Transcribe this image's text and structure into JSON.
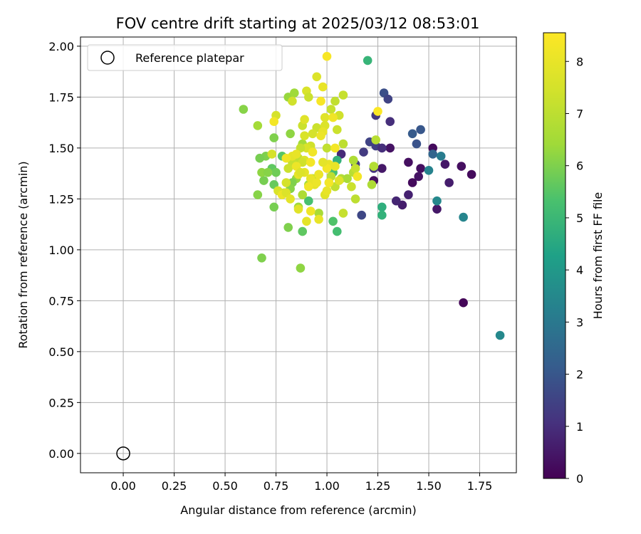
{
  "chart_data": {
    "type": "scatter",
    "title": "FOV centre drift starting at 2025/03/12 08:53:01",
    "xlabel": "Angular distance from reference (arcmin)",
    "ylabel": "Rotation from reference (arcmin)",
    "xlim": [
      -0.21,
      1.93
    ],
    "ylim": [
      -0.095,
      2.045
    ],
    "xticks": [
      "0.00",
      "0.25",
      "0.50",
      "0.75",
      "1.00",
      "1.25",
      "1.50",
      "1.75"
    ],
    "yticks": [
      "0.00",
      "0.25",
      "0.50",
      "0.75",
      "1.00",
      "1.25",
      "1.50",
      "1.75",
      "2.00"
    ],
    "grid": true,
    "legend": {
      "position": "upper-left",
      "label": "Reference platepar"
    },
    "reference_point": {
      "x": 0.0,
      "y": 0.0
    },
    "colorbar": {
      "label": "Hours from first FF file",
      "range": [
        0,
        8.55
      ],
      "ticks": [
        "0",
        "1",
        "2",
        "3",
        "4",
        "5",
        "6",
        "7",
        "8"
      ],
      "colormap": "viridis"
    },
    "points": [
      [
        1.67,
        0.74,
        0.1
      ],
      [
        1.52,
        1.5,
        0.2
      ],
      [
        1.4,
        1.43,
        0.3
      ],
      [
        1.42,
        1.33,
        0.2
      ],
      [
        1.46,
        1.4,
        0.3
      ],
      [
        1.45,
        1.36,
        0.4
      ],
      [
        1.71,
        1.37,
        0.2
      ],
      [
        1.66,
        1.41,
        0.3
      ],
      [
        1.58,
        1.42,
        0.5
      ],
      [
        1.6,
        1.33,
        0.6
      ],
      [
        1.54,
        1.2,
        0.5
      ],
      [
        1.4,
        1.27,
        0.7
      ],
      [
        1.37,
        1.22,
        0.6
      ],
      [
        1.34,
        1.24,
        0.8
      ],
      [
        1.31,
        1.5,
        0.4
      ],
      [
        1.23,
        1.34,
        0.3
      ],
      [
        1.27,
        1.4,
        0.5
      ],
      [
        1.31,
        1.63,
        1.0
      ],
      [
        1.28,
        1.77,
        1.8
      ],
      [
        1.3,
        1.74,
        1.5
      ],
      [
        1.24,
        1.66,
        1.2
      ],
      [
        1.24,
        1.51,
        1.4
      ],
      [
        1.21,
        1.53,
        1.5
      ],
      [
        1.27,
        1.5,
        1.0
      ],
      [
        1.23,
        1.4,
        1.1
      ],
      [
        1.18,
        1.48,
        1.3
      ],
      [
        1.17,
        1.17,
        1.6
      ],
      [
        1.14,
        1.42,
        1.3
      ],
      [
        1.07,
        1.47,
        0.9
      ],
      [
        1.42,
        1.57,
        2.1
      ],
      [
        1.46,
        1.59,
        2.0
      ],
      [
        1.44,
        1.52,
        1.9
      ],
      [
        1.52,
        1.47,
        2.4
      ],
      [
        1.56,
        1.46,
        3.1
      ],
      [
        1.5,
        1.39,
        3.3
      ],
      [
        1.54,
        1.24,
        3.5
      ],
      [
        1.67,
        1.16,
        3.4
      ],
      [
        1.85,
        0.58,
        3.5
      ],
      [
        1.27,
        1.21,
        4.7
      ],
      [
        1.27,
        1.17,
        4.8
      ],
      [
        1.2,
        1.93,
        4.9
      ],
      [
        1.05,
        1.44,
        4.8
      ],
      [
        1.03,
        1.38,
        5.3
      ],
      [
        1.05,
        1.09,
        5.2
      ],
      [
        1.03,
        1.14,
        5.4
      ],
      [
        0.91,
        1.24,
        5.3
      ],
      [
        0.88,
        1.09,
        5.6
      ],
      [
        0.84,
        1.45,
        5.3
      ],
      [
        0.78,
        1.46,
        5.5
      ],
      [
        0.73,
        1.4,
        5.6
      ],
      [
        0.75,
        1.38,
        5.8
      ],
      [
        0.74,
        1.32,
        5.7
      ],
      [
        0.74,
        1.21,
        5.9
      ],
      [
        0.81,
        1.11,
        6.0
      ],
      [
        0.87,
        0.91,
        6.2
      ],
      [
        0.68,
        0.96,
        6.0
      ],
      [
        0.66,
        1.27,
        6.1
      ],
      [
        0.69,
        1.34,
        5.9
      ],
      [
        0.68,
        1.38,
        6.2
      ],
      [
        0.71,
        1.38,
        6.1
      ],
      [
        0.7,
        1.46,
        6.0
      ],
      [
        0.67,
        1.45,
        5.9
      ],
      [
        0.59,
        1.69,
        6.1
      ],
      [
        0.66,
        1.61,
        6.5
      ],
      [
        0.74,
        1.55,
        6.0
      ],
      [
        0.82,
        1.57,
        6.2
      ],
      [
        0.81,
        1.75,
        6.3
      ],
      [
        0.84,
        1.77,
        6.4
      ],
      [
        0.88,
        1.52,
        6.5
      ],
      [
        0.85,
        1.35,
        6.3
      ],
      [
        0.83,
        1.33,
        6.0
      ],
      [
        0.82,
        1.3,
        6.1
      ],
      [
        0.86,
        1.21,
        6.4
      ],
      [
        0.88,
        1.27,
        6.7
      ],
      [
        0.91,
        1.32,
        6.5
      ],
      [
        0.93,
        1.35,
        6.8
      ],
      [
        0.96,
        1.18,
        6.6
      ],
      [
        0.96,
        1.37,
        6.9
      ],
      [
        1.01,
        1.33,
        6.8
      ],
      [
        1.02,
        1.36,
        7.0
      ],
      [
        1.04,
        1.31,
        7.1
      ],
      [
        1.07,
        1.35,
        6.8
      ],
      [
        1.1,
        1.35,
        6.6
      ],
      [
        1.12,
        1.31,
        7.3
      ],
      [
        1.14,
        1.25,
        7.0
      ],
      [
        1.13,
        1.38,
        6.9
      ],
      [
        1.13,
        1.44,
        6.7
      ],
      [
        1.22,
        1.32,
        6.7
      ],
      [
        1.23,
        1.41,
        6.8
      ],
      [
        1.24,
        1.54,
        6.9
      ],
      [
        1.14,
        1.4,
        7.2
      ],
      [
        1.08,
        1.18,
        7.2
      ],
      [
        1.08,
        1.52,
        7.0
      ],
      [
        1.08,
        1.76,
        7.2
      ],
      [
        1.06,
        1.66,
        7.4
      ],
      [
        1.05,
        1.59,
        7.3
      ],
      [
        1.04,
        1.73,
        7.1
      ],
      [
        1.02,
        1.69,
        7.2
      ],
      [
        1.0,
        1.5,
        7.1
      ],
      [
        0.95,
        1.6,
        7.3
      ],
      [
        0.93,
        1.57,
        7.5
      ],
      [
        0.92,
        1.51,
        7.4
      ],
      [
        0.9,
        1.5,
        7.6
      ],
      [
        0.9,
        1.78,
        7.6
      ],
      [
        0.91,
        1.75,
        7.3
      ],
      [
        0.88,
        1.61,
        7.3
      ],
      [
        0.87,
        1.5,
        7.2
      ],
      [
        0.86,
        1.45,
        7.1
      ],
      [
        0.83,
        1.43,
        7.2
      ],
      [
        0.81,
        1.4,
        7.3
      ],
      [
        0.8,
        1.33,
        7.5
      ],
      [
        0.79,
        1.28,
        7.4
      ],
      [
        0.76,
        1.29,
        7.6
      ],
      [
        0.73,
        1.47,
        7.5
      ],
      [
        0.75,
        1.66,
        7.5
      ],
      [
        0.83,
        1.73,
        7.4
      ],
      [
        0.89,
        1.56,
        7.6
      ],
      [
        0.89,
        1.64,
        7.8
      ],
      [
        0.89,
        1.44,
        7.7
      ],
      [
        0.88,
        1.43,
        7.4
      ],
      [
        0.95,
        1.85,
        7.7
      ],
      [
        0.98,
        1.8,
        8.0
      ],
      [
        0.99,
        1.65,
        7.8
      ],
      [
        0.99,
        1.61,
        7.7
      ],
      [
        0.98,
        1.58,
        8.0
      ],
      [
        0.97,
        1.56,
        8.1
      ],
      [
        0.97,
        1.73,
        8.4
      ],
      [
        1.0,
        1.95,
        8.4
      ],
      [
        1.03,
        1.65,
        8.2
      ],
      [
        1.04,
        1.5,
        8.3
      ],
      [
        1.01,
        1.42,
        8.0
      ],
      [
        1.0,
        1.4,
        8.3
      ],
      [
        0.99,
        1.27,
        7.8
      ],
      [
        0.98,
        1.43,
        7.9
      ],
      [
        0.96,
        1.37,
        8.1
      ],
      [
        0.94,
        1.32,
        7.9
      ],
      [
        0.92,
        1.35,
        8.0
      ],
      [
        0.91,
        1.31,
        8.2
      ],
      [
        0.89,
        1.38,
        7.9
      ],
      [
        0.86,
        1.37,
        8.0
      ],
      [
        0.85,
        1.41,
        8.1
      ],
      [
        0.83,
        1.46,
        7.9
      ],
      [
        0.8,
        1.45,
        8.2
      ],
      [
        0.78,
        1.27,
        8.1
      ],
      [
        0.8,
        1.28,
        7.7
      ],
      [
        0.82,
        1.25,
        7.9
      ],
      [
        0.86,
        1.2,
        7.8
      ],
      [
        0.9,
        1.14,
        7.9
      ],
      [
        0.92,
        1.19,
        8.2
      ],
      [
        0.96,
        1.15,
        8.0
      ],
      [
        0.92,
        1.43,
        8.3
      ],
      [
        0.95,
        1.33,
        8.1
      ],
      [
        1.0,
        1.29,
        8.0
      ],
      [
        1.01,
        1.33,
        8.3
      ],
      [
        1.04,
        1.41,
        8.0
      ],
      [
        1.15,
        1.36,
        8.3
      ],
      [
        1.25,
        1.68,
        8.5
      ],
      [
        0.74,
        1.63,
        8.3
      ],
      [
        0.85,
        1.47,
        8.0
      ],
      [
        0.87,
        1.38,
        7.7
      ],
      [
        0.93,
        1.48,
        8.2
      ],
      [
        1.06,
        1.34,
        7.8
      ]
    ]
  }
}
